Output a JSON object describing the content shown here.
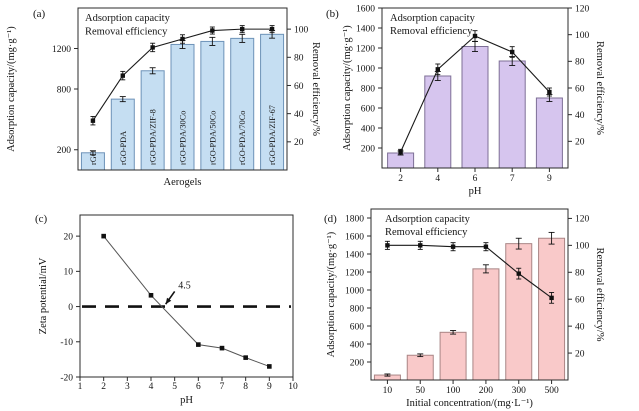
{
  "figure": {
    "description": "Four-panel adsorption performance figure",
    "text_color": "#141414",
    "spine_color": "#2b2b2b"
  },
  "chart_data": [
    {
      "id": "a",
      "panel_label": "(a)",
      "type": "bar",
      "categories": [
        "rGO",
        "rGO-PDA",
        "rGO-PDA/ZIF-8",
        "rGO-PDA/30Co",
        "rGO-PDA/50Co",
        "rGO-PDA/70Co",
        "rGO-PDA/ZIF-67"
      ],
      "series": [
        {
          "name": "Adsorption capacity",
          "kind": "bar",
          "axis": "left",
          "values": [
            170,
            700,
            980,
            1240,
            1270,
            1300,
            1340
          ],
          "errors": [
            20,
            25,
            30,
            40,
            40,
            40,
            38
          ]
        },
        {
          "name": "Removal efficiency",
          "kind": "line",
          "axis": "right",
          "values": [
            35,
            67,
            87,
            93,
            99,
            100,
            100
          ],
          "errors": [
            3,
            3,
            3,
            3,
            2.5,
            2.5,
            2.5
          ]
        }
      ],
      "xlabel": "Aerogels",
      "ylabel_left": "Adsorption capacity/(mg·g⁻¹)",
      "ylabel_right": "Removal efficiency/%",
      "ylim_left": [
        0,
        1600
      ],
      "yticks_left": [
        200,
        800,
        1200
      ],
      "ylim_right": [
        0,
        115
      ],
      "yticks_right": [
        20,
        40,
        60,
        80,
        100
      ],
      "legend": [
        "Adsorption capacity",
        "Removal efficiency"
      ],
      "category_labels_inside_bars": true,
      "show_x_tick_labels": false,
      "colors": {
        "bar_fill": "#c5def2",
        "bar_stroke": "#6d92b8",
        "line": "#1a1a1a"
      }
    },
    {
      "id": "b",
      "panel_label": "(b)",
      "type": "bar",
      "categories": [
        "2",
        "4",
        "6",
        "7",
        "9"
      ],
      "series": [
        {
          "name": "Adsorption capacity",
          "kind": "bar",
          "axis": "left",
          "values": [
            150,
            920,
            1215,
            1070,
            700
          ],
          "errors": [
            20,
            45,
            50,
            45,
            35
          ]
        },
        {
          "name": "Removal efficiency",
          "kind": "line",
          "axis": "right",
          "values": [
            12,
            74,
            99,
            87,
            57
          ],
          "errors": [
            2,
            4,
            4,
            4,
            3
          ]
        }
      ],
      "xlabel": "pH",
      "ylabel_left": "Adsorption capacity/(mg·g⁻¹)",
      "ylabel_right": "Removal efficiency/%",
      "ylim_left": [
        0,
        1600
      ],
      "yticks_left": [
        200,
        400,
        600,
        800,
        1000,
        1200,
        1400,
        1600
      ],
      "ylim_right": [
        0,
        120
      ],
      "yticks_right": [
        20,
        40,
        60,
        80,
        100,
        120
      ],
      "legend": [
        "Adsorption capacity",
        "Removal efficiency"
      ],
      "category_labels_inside_bars": false,
      "show_x_tick_labels": true,
      "colors": {
        "bar_fill": "#d6c5ee",
        "bar_stroke": "#7d6f96",
        "line": "#1a1a1a"
      }
    },
    {
      "id": "c",
      "panel_label": "(c)",
      "type": "scatter",
      "series": [
        {
          "name": "Zeta potential",
          "kind": "line",
          "x": [
            2,
            4,
            6,
            7,
            8,
            9
          ],
          "values": [
            20,
            3.2,
            -10.8,
            -11.8,
            -14.5,
            -17
          ]
        }
      ],
      "xlabel": "pH",
      "ylabel_left": "Zeta potential/mV",
      "xlim": [
        1,
        10
      ],
      "xticks": [
        1,
        2,
        3,
        4,
        5,
        6,
        7,
        8,
        9,
        10
      ],
      "ylim_left": [
        -20,
        26
      ],
      "yticks_left": [
        -20,
        -10,
        0,
        10,
        20
      ],
      "zero_line": true,
      "annotation": {
        "text": "4.5",
        "text_xy": [
          5.15,
          6.0
        ],
        "arrow_from": [
          5.0,
          4.3
        ],
        "arrow_to": [
          4.62,
          0.7
        ]
      },
      "colors": {
        "line": "#555555",
        "marker": "#111111",
        "zero_dash": "#111111"
      }
    },
    {
      "id": "d",
      "panel_label": "(d)",
      "type": "bar",
      "categories": [
        "10",
        "50",
        "100",
        "200",
        "300",
        "500"
      ],
      "series": [
        {
          "name": "Adsorption capacity",
          "kind": "bar",
          "axis": "left",
          "values": [
            55,
            275,
            530,
            1235,
            1515,
            1575
          ],
          "errors": [
            12,
            15,
            20,
            45,
            60,
            65
          ]
        },
        {
          "name": "Removal efficiency",
          "kind": "line",
          "axis": "right",
          "values": [
            100,
            100,
            99,
            99,
            79,
            61
          ],
          "errors": [
            3,
            3,
            3,
            3,
            4,
            4
          ]
        }
      ],
      "xlabel": "Initial concentration/(mg·L⁻¹)",
      "ylabel_left": "Adsorption capacity/(mg·g⁻¹)",
      "ylabel_right": "Removal efficiency/%",
      "ylim_left": [
        0,
        1900
      ],
      "yticks_left": [
        200,
        400,
        600,
        800,
        1000,
        1200,
        1400,
        1600,
        1800
      ],
      "ylim_right": [
        0,
        127
      ],
      "yticks_right": [
        20,
        40,
        60,
        80,
        100,
        120
      ],
      "legend": [
        "Adsorption capacity",
        "Removal efficiency"
      ],
      "category_labels_inside_bars": false,
      "show_x_tick_labels": true,
      "colors": {
        "bar_fill": "#f9c9c9",
        "bar_stroke": "#a98585",
        "line": "#1a1a1a"
      }
    }
  ]
}
